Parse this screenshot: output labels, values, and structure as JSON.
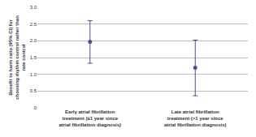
{
  "chart_data": {
    "type": "scatter",
    "y_label": "Benefit to harm ratio (95% CI) for choosing rhythm control rather than rate control",
    "categories": [
      "Early atrial fibrillation treatment (≤1 year since atrial fibrillation diagnosis)",
      "Late atrial fibrillation treatment (>1 year since atrial fibrillation diagnosis)"
    ],
    "values": [
      1.97,
      1.2
    ],
    "ci_low": [
      1.33,
      0.36
    ],
    "ci_high": [
      2.6,
      2.02
    ],
    "color": "#4b4f8f",
    "marker": "circle",
    "ylim": [
      0,
      3
    ],
    "yticks": [
      0,
      {
        "value": 0.5,
        "label": "0.5"
      },
      {
        "value": 1,
        "label": "1.0"
      },
      {
        "value": 1.5,
        "label": "1.5"
      },
      {
        "value": 2,
        "label": "2.0"
      },
      {
        "value": 2.5,
        "label": "2.5"
      },
      {
        "value": 3,
        "label": "3.0"
      }
    ],
    "grid": true
  }
}
